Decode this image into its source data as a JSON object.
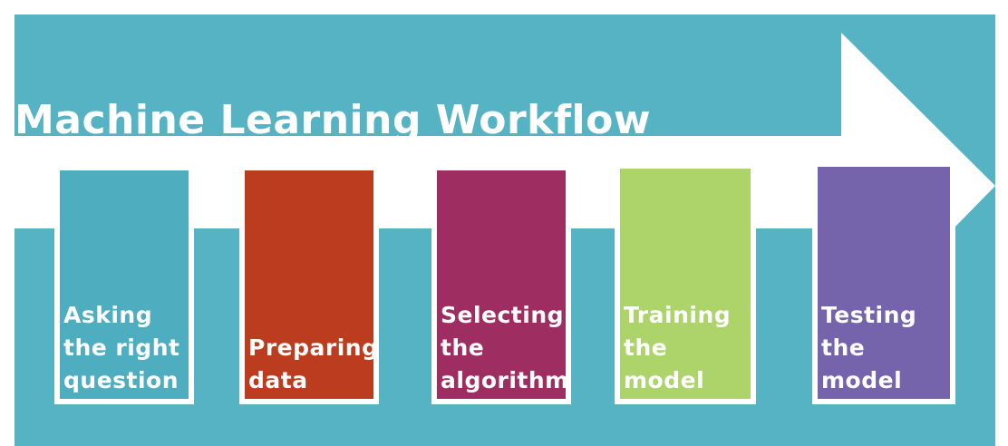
{
  "title": "Machine Learning Workflow",
  "colors": {
    "background_panel": "#56b3c4",
    "arrow": "#ffffff",
    "text": "#ffffff"
  },
  "steps": [
    {
      "label": "Asking\nthe right\nquestion",
      "color": "#4eaebf"
    },
    {
      "label": "Preparing\ndata",
      "color": "#bb3c1e"
    },
    {
      "label": "Selecting\nthe\nalgorithm",
      "color": "#9e2d62"
    },
    {
      "label": "Training\nthe\nmodel",
      "color": "#acd46a"
    },
    {
      "label": "Testing\nthe\nmodel",
      "color": "#7563ab"
    }
  ]
}
